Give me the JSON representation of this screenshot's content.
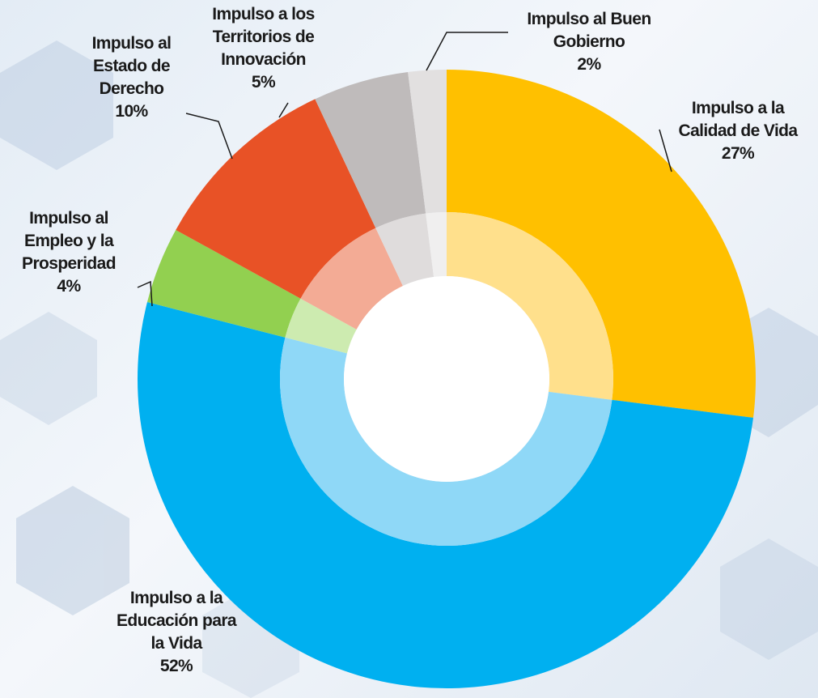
{
  "chart_data": {
    "type": "donut",
    "categories": [
      "Impulso a la Calidad de Vida",
      "Impulso a la Educación para la Vida",
      "Impulso al Empleo y la Prosperidad",
      "Impulso al Estado de Derecho",
      "Impulso a los Territorios de Innovación",
      "Impulso al Buen Gobierno"
    ],
    "values": [
      27,
      52,
      4,
      10,
      5,
      2
    ],
    "value_labels": [
      "27%",
      "52%",
      "4%",
      "10%",
      "5%",
      "2%"
    ],
    "colors": [
      "#ffc000",
      "#00b0f0",
      "#92d050",
      "#e85226",
      "#bfbbbb",
      "#e2e0e0"
    ],
    "inner_colors": [
      "#ffe08c",
      "#8fd8f7",
      "#cdebb0",
      "#f3ab95",
      "#dfdcdc",
      "#f0efef"
    ]
  }
}
